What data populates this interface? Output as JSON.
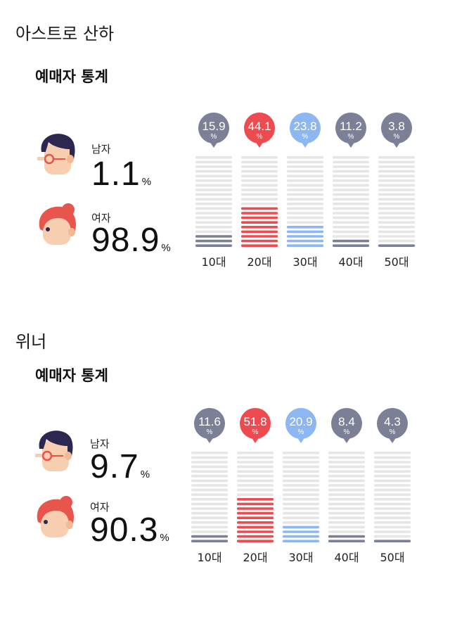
{
  "colors": {
    "gray": "#7b8097",
    "red": "#ee4b50",
    "blue": "#8db7f2",
    "track": "#e6e6e6",
    "skin": "#f7cfb0",
    "hair_male": "#2b2750",
    "hair_female": "#e8554d"
  },
  "icons": [
    "male-avatar-icon",
    "female-avatar-icon"
  ],
  "sections": [
    {
      "title": "아스트로 산하",
      "subtitle": "예매자 통계",
      "male": {
        "label": "남자",
        "value": "1.1",
        "unit": "%"
      },
      "female": {
        "label": "여자",
        "value": "98.9",
        "unit": "%"
      }
    },
    {
      "title": "위너",
      "subtitle": "예매자 통계",
      "male": {
        "label": "남자",
        "value": "9.7",
        "unit": "%"
      },
      "female": {
        "label": "여자",
        "value": "90.3",
        "unit": "%"
      }
    }
  ],
  "chart_data": [
    {
      "type": "bar",
      "categories": [
        "10대",
        "20대",
        "30대",
        "40대",
        "50대"
      ],
      "values": [
        15.9,
        44.1,
        23.8,
        11.2,
        3.8
      ],
      "value_labels": [
        "15.9",
        "44.1",
        "23.8",
        "11.2",
        "3.8"
      ],
      "unit_label": "%",
      "bar_colors": [
        "#7b8097",
        "#ee4b50",
        "#8db7f2",
        "#7b8097",
        "#7b8097"
      ],
      "ylim": [
        0,
        100
      ],
      "segments": 20,
      "grid": false
    },
    {
      "type": "bar",
      "categories": [
        "10대",
        "20대",
        "30대",
        "40대",
        "50대"
      ],
      "values": [
        11.6,
        51.8,
        20.9,
        8.4,
        4.3
      ],
      "value_labels": [
        "11.6",
        "51.8",
        "20.9",
        "8.4",
        "4.3"
      ],
      "unit_label": "%",
      "bar_colors": [
        "#7b8097",
        "#ee4b50",
        "#8db7f2",
        "#7b8097",
        "#7b8097"
      ],
      "ylim": [
        0,
        100
      ],
      "segments": 20,
      "grid": false
    }
  ]
}
